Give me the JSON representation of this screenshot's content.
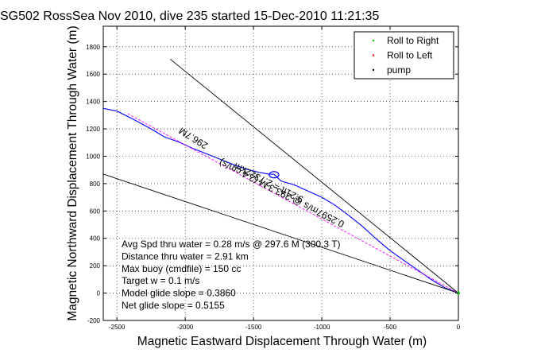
{
  "chart_data": {
    "type": "line",
    "title": "SG502 RossSea Nov 2010, dive 235 started 15-Dec-2010 11:21:35",
    "xlabel": "Magnetic Eastward Displacement Through Water (m)",
    "ylabel": "Magnetic Northward Displacement Through Water (m)",
    "xlim": [
      -2600,
      0
    ],
    "ylim": [
      -200,
      1950
    ],
    "xticks": [
      -2500,
      -2000,
      -1500,
      -1000,
      -500,
      0
    ],
    "yticks": [
      -200,
      0,
      200,
      400,
      600,
      800,
      1000,
      1200,
      1400,
      1600,
      1800
    ],
    "grid": true,
    "legend_position": "top-right",
    "legend": [
      {
        "label": "Roll to Right",
        "color": "#00cc00",
        "marker": "dot"
      },
      {
        "label": "Roll to Left",
        "color": "#ff0000",
        "marker": "dot"
      },
      {
        "label": "pump",
        "color": "#000000",
        "marker": "dot"
      }
    ],
    "series": [
      {
        "kind": "track",
        "color": "#0000ff",
        "points": [
          [
            -2600,
            1350
          ],
          [
            -2500,
            1330
          ],
          [
            -2380,
            1270
          ],
          [
            -2250,
            1200
          ],
          [
            -2150,
            1140
          ],
          [
            -2050,
            1105
          ],
          [
            -1950,
            1060
          ],
          [
            -1850,
            1020
          ],
          [
            -1750,
            980
          ],
          [
            -1650,
            940
          ],
          [
            -1550,
            905
          ],
          [
            -1450,
            880
          ],
          [
            -1390,
            870
          ],
          [
            -1350,
            868
          ],
          [
            -1330,
            850
          ],
          [
            -1300,
            820
          ],
          [
            -1200,
            790
          ],
          [
            -1100,
            745
          ],
          [
            -1000,
            700
          ],
          [
            -900,
            640
          ],
          [
            -800,
            565
          ],
          [
            -700,
            485
          ],
          [
            -600,
            395
          ],
          [
            -500,
            310
          ],
          [
            -400,
            240
          ],
          [
            -300,
            170
          ],
          [
            -200,
            100
          ],
          [
            -100,
            40
          ],
          [
            0,
            0
          ]
        ]
      },
      {
        "kind": "glide-heading",
        "color": "#000000",
        "points": [
          [
            -2110,
            1710
          ],
          [
            0,
            0
          ]
        ]
      },
      {
        "kind": "mean-current",
        "color": "#000000",
        "points": [
          [
            -2600,
            870
          ],
          [
            0,
            0
          ]
        ]
      },
      {
        "kind": "net-displacement",
        "color": "#ff00ff",
        "points": [
          [
            -2420,
            1310
          ],
          [
            0,
            0
          ]
        ]
      }
    ],
    "markers": [
      {
        "name": "dive-start-ring",
        "x": -1350,
        "y": 865,
        "color": "#0000ff"
      },
      {
        "name": "surface-point",
        "x": 0,
        "y": 0,
        "color": "#00cc00"
      }
    ],
    "annotations": [
      {
        "text": "296.7M",
        "x": -1830,
        "y": 1090,
        "angle_deg": 212
      },
      {
        "text": "0.2597m/s @ 293.3 M (2.4 cm/s)",
        "x": -830,
        "y": 520,
        "angle_deg": 207
      },
      {
        "text": "9.21ft = 2.7322km",
        "x": -1130,
        "y": 700,
        "angle_deg": 207
      }
    ],
    "stats": [
      "Avg Spd thru water =  0.28 m/s @ 297.6    M (300.3 T)",
      "Distance thru water =  2.91 km",
      "Max buoy (cmdfile) = 150 cc",
      "Target w = 0.1 m/s",
      "Model glide slope = 0.3860",
      "Net glide slope = 0.5155"
    ]
  }
}
